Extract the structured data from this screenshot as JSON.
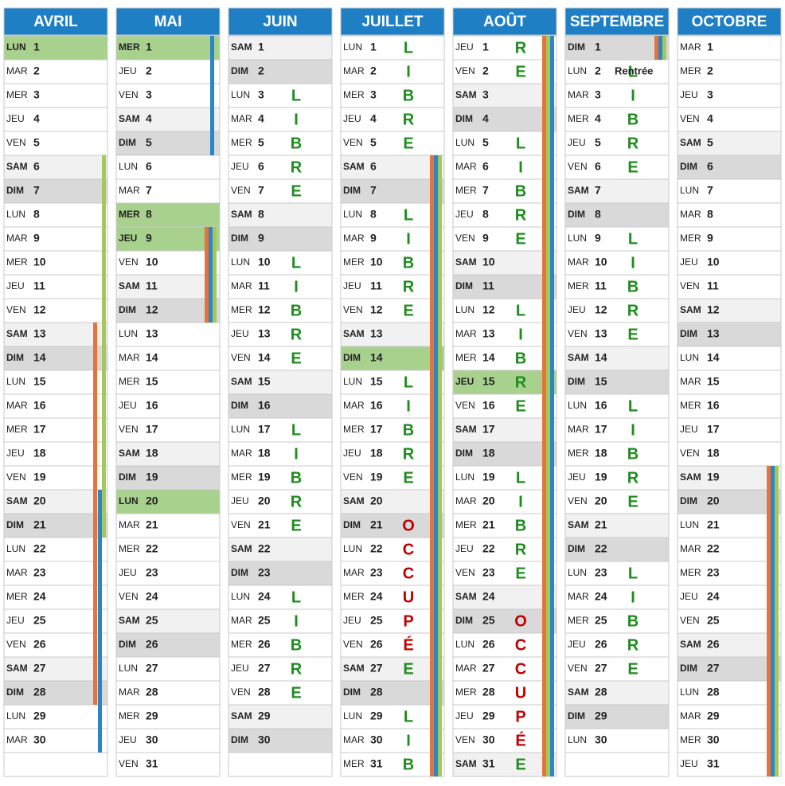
{
  "months": [
    {
      "name": "AVRIL",
      "days": [
        [
          "LUN",
          1
        ],
        [
          "MAR",
          2
        ],
        [
          "MER",
          3
        ],
        [
          "JEU",
          4
        ],
        [
          "VEN",
          5
        ],
        [
          "SAM",
          6
        ],
        [
          "DIM",
          7
        ],
        [
          "LUN",
          8
        ],
        [
          "MAR",
          9
        ],
        [
          "MER",
          10
        ],
        [
          "JEU",
          11
        ],
        [
          "VEN",
          12
        ],
        [
          "SAM",
          13
        ],
        [
          "DIM",
          14
        ],
        [
          "LUN",
          15
        ],
        [
          "MAR",
          16
        ],
        [
          "MER",
          17
        ],
        [
          "JEU",
          18
        ],
        [
          "VEN",
          19
        ],
        [
          "SAM",
          20
        ],
        [
          "DIM",
          21
        ],
        [
          "LUN",
          22
        ],
        [
          "MAR",
          23
        ],
        [
          "MER",
          24
        ],
        [
          "JEU",
          25
        ],
        [
          "VEN",
          26
        ],
        [
          "SAM",
          27
        ],
        [
          "DIM",
          28
        ],
        [
          "LUN",
          29
        ],
        [
          "MAR",
          30
        ]
      ]
    },
    {
      "name": "MAI",
      "days": [
        [
          "MER",
          1
        ],
        [
          "JEU",
          2
        ],
        [
          "VEN",
          3
        ],
        [
          "SAM",
          4
        ],
        [
          "DIM",
          5
        ],
        [
          "LUN",
          6
        ],
        [
          "MAR",
          7
        ],
        [
          "MER",
          8
        ],
        [
          "JEU",
          9
        ],
        [
          "VEN",
          10
        ],
        [
          "SAM",
          11
        ],
        [
          "DIM",
          12
        ],
        [
          "LUN",
          13
        ],
        [
          "MAR",
          14
        ],
        [
          "MER",
          15
        ],
        [
          "JEU",
          16
        ],
        [
          "VEN",
          17
        ],
        [
          "SAM",
          18
        ],
        [
          "DIM",
          19
        ],
        [
          "LUN",
          20
        ],
        [
          "MAR",
          21
        ],
        [
          "MER",
          22
        ],
        [
          "JEU",
          23
        ],
        [
          "VEN",
          24
        ],
        [
          "SAM",
          25
        ],
        [
          "DIM",
          26
        ],
        [
          "LUN",
          27
        ],
        [
          "MAR",
          28
        ],
        [
          "MER",
          29
        ],
        [
          "JEU",
          30
        ],
        [
          "VEN",
          31
        ]
      ]
    },
    {
      "name": "JUIN",
      "days": [
        [
          "SAM",
          1
        ],
        [
          "DIM",
          2
        ],
        [
          "LUN",
          3,
          "L"
        ],
        [
          "MAR",
          4,
          "I"
        ],
        [
          "MER",
          5,
          "B"
        ],
        [
          "JEU",
          6,
          "R"
        ],
        [
          "VEN",
          7,
          "E"
        ],
        [
          "SAM",
          8
        ],
        [
          "DIM",
          9
        ],
        [
          "LUN",
          10,
          "L"
        ],
        [
          "MAR",
          11,
          "I"
        ],
        [
          "MER",
          12,
          "B"
        ],
        [
          "JEU",
          13,
          "R"
        ],
        [
          "VEN",
          14,
          "E"
        ],
        [
          "SAM",
          15
        ],
        [
          "DIM",
          16
        ],
        [
          "LUN",
          17,
          "L"
        ],
        [
          "MAR",
          18,
          "I"
        ],
        [
          "MER",
          19,
          "B"
        ],
        [
          "JEU",
          20,
          "R"
        ],
        [
          "VEN",
          21,
          "E"
        ],
        [
          "SAM",
          22
        ],
        [
          "DIM",
          23
        ],
        [
          "LUN",
          24,
          "L"
        ],
        [
          "MAR",
          25,
          "I"
        ],
        [
          "MER",
          26,
          "B"
        ],
        [
          "JEU",
          27,
          "R"
        ],
        [
          "VEN",
          28,
          "E"
        ],
        [
          "SAM",
          29
        ],
        [
          "DIM",
          30
        ]
      ]
    },
    {
      "name": "JUILLET",
      "days": [
        [
          "LUN",
          1,
          "L"
        ],
        [
          "MAR",
          2,
          "I"
        ],
        [
          "MER",
          3,
          "B"
        ],
        [
          "JEU",
          4,
          "R"
        ],
        [
          "VEN",
          5,
          "E"
        ],
        [
          "SAM",
          6
        ],
        [
          "DIM",
          7
        ],
        [
          "LUN",
          8,
          "L"
        ],
        [
          "MAR",
          9,
          "I"
        ],
        [
          "MER",
          10,
          "B"
        ],
        [
          "JEU",
          11,
          "R"
        ],
        [
          "VEN",
          12,
          "E"
        ],
        [
          "SAM",
          13
        ],
        [
          "DIM",
          14
        ],
        [
          "LUN",
          15,
          "L"
        ],
        [
          "MAR",
          16,
          "I"
        ],
        [
          "MER",
          17,
          "B"
        ],
        [
          "JEU",
          18,
          "R"
        ],
        [
          "VEN",
          19,
          "E"
        ],
        [
          "SAM",
          20
        ],
        [
          "DIM",
          21,
          "O"
        ],
        [
          "LUN",
          22,
          "C"
        ],
        [
          "MAR",
          23,
          "C"
        ],
        [
          "MER",
          24,
          "U"
        ],
        [
          "JEU",
          25,
          "P"
        ],
        [
          "VEN",
          26,
          "É"
        ],
        [
          "SAM",
          27,
          "E"
        ],
        [
          "DIM",
          28
        ],
        [
          "LUN",
          29,
          "L"
        ],
        [
          "MAR",
          30,
          "I"
        ],
        [
          "MER",
          31,
          "B"
        ]
      ]
    },
    {
      "name": "AOÛT",
      "days": [
        [
          "JEU",
          1,
          "R"
        ],
        [
          "VEN",
          2,
          "E"
        ],
        [
          "SAM",
          3
        ],
        [
          "DIM",
          4
        ],
        [
          "LUN",
          5,
          "L"
        ],
        [
          "MAR",
          6,
          "I"
        ],
        [
          "MER",
          7,
          "B"
        ],
        [
          "JEU",
          8,
          "R"
        ],
        [
          "VEN",
          9,
          "E"
        ],
        [
          "SAM",
          10
        ],
        [
          "DIM",
          11
        ],
        [
          "LUN",
          12,
          "L"
        ],
        [
          "MAR",
          13,
          "I"
        ],
        [
          "MER",
          14,
          "B"
        ],
        [
          "JEU",
          15,
          "R"
        ],
        [
          "VEN",
          16,
          "E"
        ],
        [
          "SAM",
          17
        ],
        [
          "DIM",
          18
        ],
        [
          "LUN",
          19,
          "L"
        ],
        [
          "MAR",
          20,
          "I"
        ],
        [
          "MER",
          21,
          "B"
        ],
        [
          "JEU",
          22,
          "R"
        ],
        [
          "VEN",
          23,
          "E"
        ],
        [
          "SAM",
          24
        ],
        [
          "DIM",
          25,
          "O"
        ],
        [
          "LUN",
          26,
          "C"
        ],
        [
          "MAR",
          27,
          "C"
        ],
        [
          "MER",
          28,
          "U"
        ],
        [
          "JEU",
          29,
          "P"
        ],
        [
          "VEN",
          30,
          "É"
        ],
        [
          "SAM",
          31,
          "E"
        ]
      ]
    },
    {
      "name": "SEPTEMBRE",
      "days": [
        [
          "DIM",
          1
        ],
        [
          "LUN",
          2,
          "L",
          "Rentrée"
        ],
        [
          "MAR",
          3,
          "I"
        ],
        [
          "MER",
          4,
          "B"
        ],
        [
          "JEU",
          5,
          "R"
        ],
        [
          "VEN",
          6,
          "E"
        ],
        [
          "SAM",
          7
        ],
        [
          "DIM",
          8
        ],
        [
          "LUN",
          9,
          "L"
        ],
        [
          "MAR",
          10,
          "I"
        ],
        [
          "MER",
          11,
          "B"
        ],
        [
          "JEU",
          12,
          "R"
        ],
        [
          "VEN",
          13,
          "E"
        ],
        [
          "SAM",
          14
        ],
        [
          "DIM",
          15
        ],
        [
          "LUN",
          16,
          "L"
        ],
        [
          "MAR",
          17,
          "I"
        ],
        [
          "MER",
          18,
          "B"
        ],
        [
          "JEU",
          19,
          "R"
        ],
        [
          "VEN",
          20,
          "E"
        ],
        [
          "SAM",
          21
        ],
        [
          "DIM",
          22
        ],
        [
          "LUN",
          23,
          "L"
        ],
        [
          "MAR",
          24,
          "I"
        ],
        [
          "MER",
          25,
          "B"
        ],
        [
          "JEU",
          26,
          "R"
        ],
        [
          "VEN",
          27,
          "E"
        ],
        [
          "SAM",
          28
        ],
        [
          "DIM",
          29
        ],
        [
          "LUN",
          30
        ]
      ]
    },
    {
      "name": "OCTOBRE",
      "days": [
        [
          "MAR",
          1
        ],
        [
          "MER",
          2
        ],
        [
          "JEU",
          3
        ],
        [
          "VEN",
          4
        ],
        [
          "SAM",
          5
        ],
        [
          "DIM",
          6
        ],
        [
          "LUN",
          7
        ],
        [
          "MAR",
          8
        ],
        [
          "MER",
          9
        ],
        [
          "JEU",
          10
        ],
        [
          "VEN",
          11
        ],
        [
          "SAM",
          12
        ],
        [
          "DIM",
          13
        ],
        [
          "LUN",
          14
        ],
        [
          "MAR",
          15
        ],
        [
          "MER",
          16
        ],
        [
          "JEU",
          17
        ],
        [
          "VEN",
          18
        ],
        [
          "SAM",
          19
        ],
        [
          "DIM",
          20
        ],
        [
          "LUN",
          21
        ],
        [
          "MAR",
          22
        ],
        [
          "MER",
          23
        ],
        [
          "JEU",
          24
        ],
        [
          "VEN",
          25
        ],
        [
          "SAM",
          26
        ],
        [
          "DIM",
          27
        ],
        [
          "LUN",
          28
        ],
        [
          "MAR",
          29
        ],
        [
          "MER",
          30
        ],
        [
          "JEU",
          31
        ]
      ]
    }
  ]
}
